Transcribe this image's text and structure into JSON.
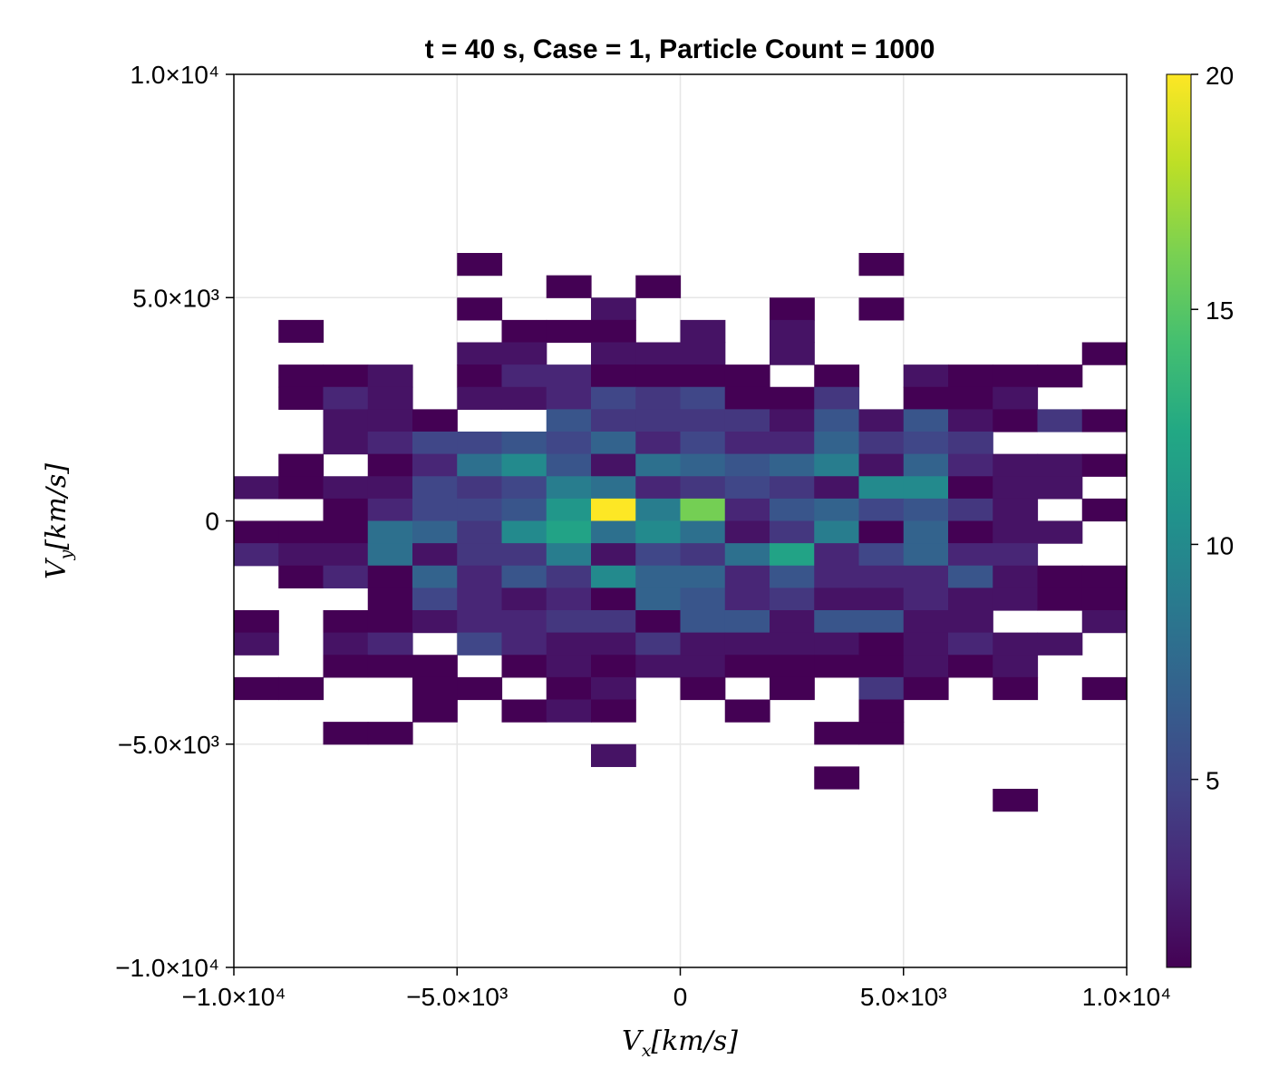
{
  "chart_data": {
    "type": "heatmap",
    "title": "t = 40 s, Case = 1, Particle Count = 1000",
    "xlabel": "V_x[km/s]",
    "ylabel": "V_y[km/s]",
    "xlim": [
      -10000,
      10000
    ],
    "ylim": [
      -10000,
      10000
    ],
    "x_ticks": [
      -10000,
      -5000,
      0,
      5000,
      10000
    ],
    "x_tick_labels": [
      "−1.0×10⁴",
      "−5.0×10³",
      "0",
      "5.0×10³",
      "1.0×10⁴"
    ],
    "y_ticks": [
      -10000,
      -5000,
      0,
      5000,
      10000
    ],
    "y_tick_labels": [
      "−1.0×10⁴",
      "−5.0×10³",
      "0",
      "5.0×10³",
      "1.0×10⁴"
    ],
    "grid": true,
    "colormap": "viridis",
    "colorbar": {
      "min": 1,
      "max": 20,
      "ticks": [
        5,
        10,
        15,
        20
      ],
      "tick_labels": [
        "5",
        "10",
        "15",
        "20"
      ]
    },
    "bin_width_x": 1000,
    "bin_width_y": 500,
    "x_bin_centers": [
      -9500,
      -8500,
      -7500,
      -6500,
      -5500,
      -4500,
      -3500,
      -2500,
      -1500,
      -500,
      500,
      1500,
      2500,
      3500,
      4500,
      5500,
      6500,
      7500,
      8500,
      9500
    ],
    "y_bin_centers": [
      5750,
      5250,
      4750,
      4250,
      3750,
      3250,
      2750,
      2250,
      1750,
      1250,
      750,
      250,
      -250,
      -750,
      -1250,
      -1750,
      -2250,
      -2750,
      -3250,
      -3750,
      -4250,
      -4750,
      -5250,
      -5750,
      -6250
    ],
    "counts": [
      [
        0,
        0,
        0,
        0,
        0,
        1,
        0,
        0,
        0,
        0,
        0,
        0,
        0,
        0,
        1,
        0,
        0,
        0,
        0,
        0
      ],
      [
        0,
        0,
        0,
        0,
        0,
        0,
        0,
        1,
        0,
        1,
        0,
        0,
        0,
        0,
        0,
        0,
        0,
        0,
        0,
        0
      ],
      [
        0,
        0,
        0,
        0,
        0,
        1,
        0,
        0,
        2,
        0,
        0,
        0,
        1,
        0,
        1,
        0,
        0,
        0,
        0,
        0
      ],
      [
        0,
        1,
        0,
        0,
        0,
        0,
        1,
        1,
        1,
        0,
        2,
        0,
        2,
        0,
        0,
        0,
        0,
        0,
        0,
        0
      ],
      [
        0,
        0,
        0,
        0,
        0,
        2,
        2,
        0,
        2,
        2,
        2,
        0,
        2,
        0,
        0,
        0,
        0,
        0,
        0,
        1
      ],
      [
        0,
        1,
        1,
        2,
        0,
        1,
        3,
        3,
        1,
        1,
        1,
        1,
        0,
        1,
        0,
        2,
        1,
        1,
        1,
        0
      ],
      [
        0,
        1,
        3,
        2,
        0,
        2,
        2,
        3,
        5,
        4,
        5,
        1,
        1,
        4,
        0,
        1,
        1,
        2,
        0,
        0
      ],
      [
        0,
        0,
        2,
        2,
        1,
        0,
        0,
        6,
        4,
        4,
        4,
        4,
        2,
        6,
        2,
        6,
        2,
        1,
        4,
        1
      ],
      [
        0,
        0,
        2,
        3,
        5,
        5,
        6,
        5,
        7,
        3,
        5,
        3,
        3,
        7,
        4,
        5,
        4,
        0,
        0,
        0
      ],
      [
        0,
        1,
        0,
        1,
        3,
        8,
        10,
        6,
        2,
        8,
        7,
        6,
        7,
        9,
        2,
        7,
        3,
        2,
        2,
        1
      ],
      [
        2,
        1,
        2,
        2,
        5,
        4,
        5,
        9,
        8,
        3,
        4,
        5,
        4,
        2,
        10,
        10,
        1,
        2,
        2,
        0
      ],
      [
        0,
        0,
        1,
        3,
        5,
        5,
        6,
        11,
        20,
        9,
        16,
        3,
        6,
        7,
        5,
        6,
        4,
        2,
        0,
        1
      ],
      [
        1,
        1,
        1,
        8,
        7,
        4,
        10,
        12,
        8,
        10,
        8,
        2,
        4,
        9,
        1,
        7,
        1,
        2,
        2,
        0
      ],
      [
        3,
        2,
        2,
        8,
        2,
        4,
        4,
        9,
        2,
        5,
        4,
        8,
        12,
        3,
        5,
        7,
        3,
        3,
        0,
        0
      ],
      [
        0,
        1,
        3,
        1,
        7,
        3,
        6,
        4,
        10,
        7,
        7,
        3,
        6,
        3,
        3,
        3,
        6,
        2,
        1,
        1
      ],
      [
        0,
        0,
        0,
        1,
        5,
        3,
        2,
        3,
        1,
        7,
        6,
        3,
        4,
        2,
        2,
        3,
        2,
        2,
        1,
        1
      ],
      [
        1,
        0,
        1,
        1,
        2,
        3,
        3,
        4,
        4,
        1,
        6,
        6,
        2,
        6,
        6,
        2,
        2,
        0,
        0,
        2
      ],
      [
        2,
        0,
        2,
        3,
        0,
        5,
        3,
        2,
        2,
        4,
        2,
        2,
        2,
        2,
        1,
        2,
        3,
        2,
        2,
        0
      ],
      [
        0,
        0,
        1,
        1,
        1,
        0,
        1,
        2,
        1,
        2,
        2,
        1,
        1,
        1,
        1,
        2,
        1,
        2,
        0,
        0
      ],
      [
        1,
        1,
        0,
        0,
        1,
        1,
        0,
        1,
        2,
        0,
        1,
        0,
        1,
        0,
        4,
        1,
        0,
        1,
        0,
        1
      ],
      [
        0,
        0,
        0,
        0,
        1,
        0,
        1,
        2,
        1,
        0,
        0,
        1,
        0,
        0,
        1,
        0,
        0,
        0,
        0,
        0
      ],
      [
        0,
        0,
        1,
        1,
        0,
        0,
        0,
        0,
        0,
        0,
        0,
        0,
        0,
        1,
        1,
        0,
        0,
        0,
        0,
        0
      ],
      [
        0,
        0,
        0,
        0,
        0,
        0,
        0,
        0,
        2,
        0,
        0,
        0,
        0,
        0,
        0,
        0,
        0,
        0,
        0,
        0
      ],
      [
        0,
        0,
        0,
        0,
        0,
        0,
        0,
        0,
        0,
        0,
        0,
        0,
        0,
        1,
        0,
        0,
        0,
        0,
        0,
        0
      ],
      [
        0,
        0,
        0,
        0,
        0,
        0,
        0,
        0,
        0,
        0,
        0,
        0,
        0,
        0,
        0,
        0,
        0,
        1,
        0,
        0
      ]
    ]
  }
}
